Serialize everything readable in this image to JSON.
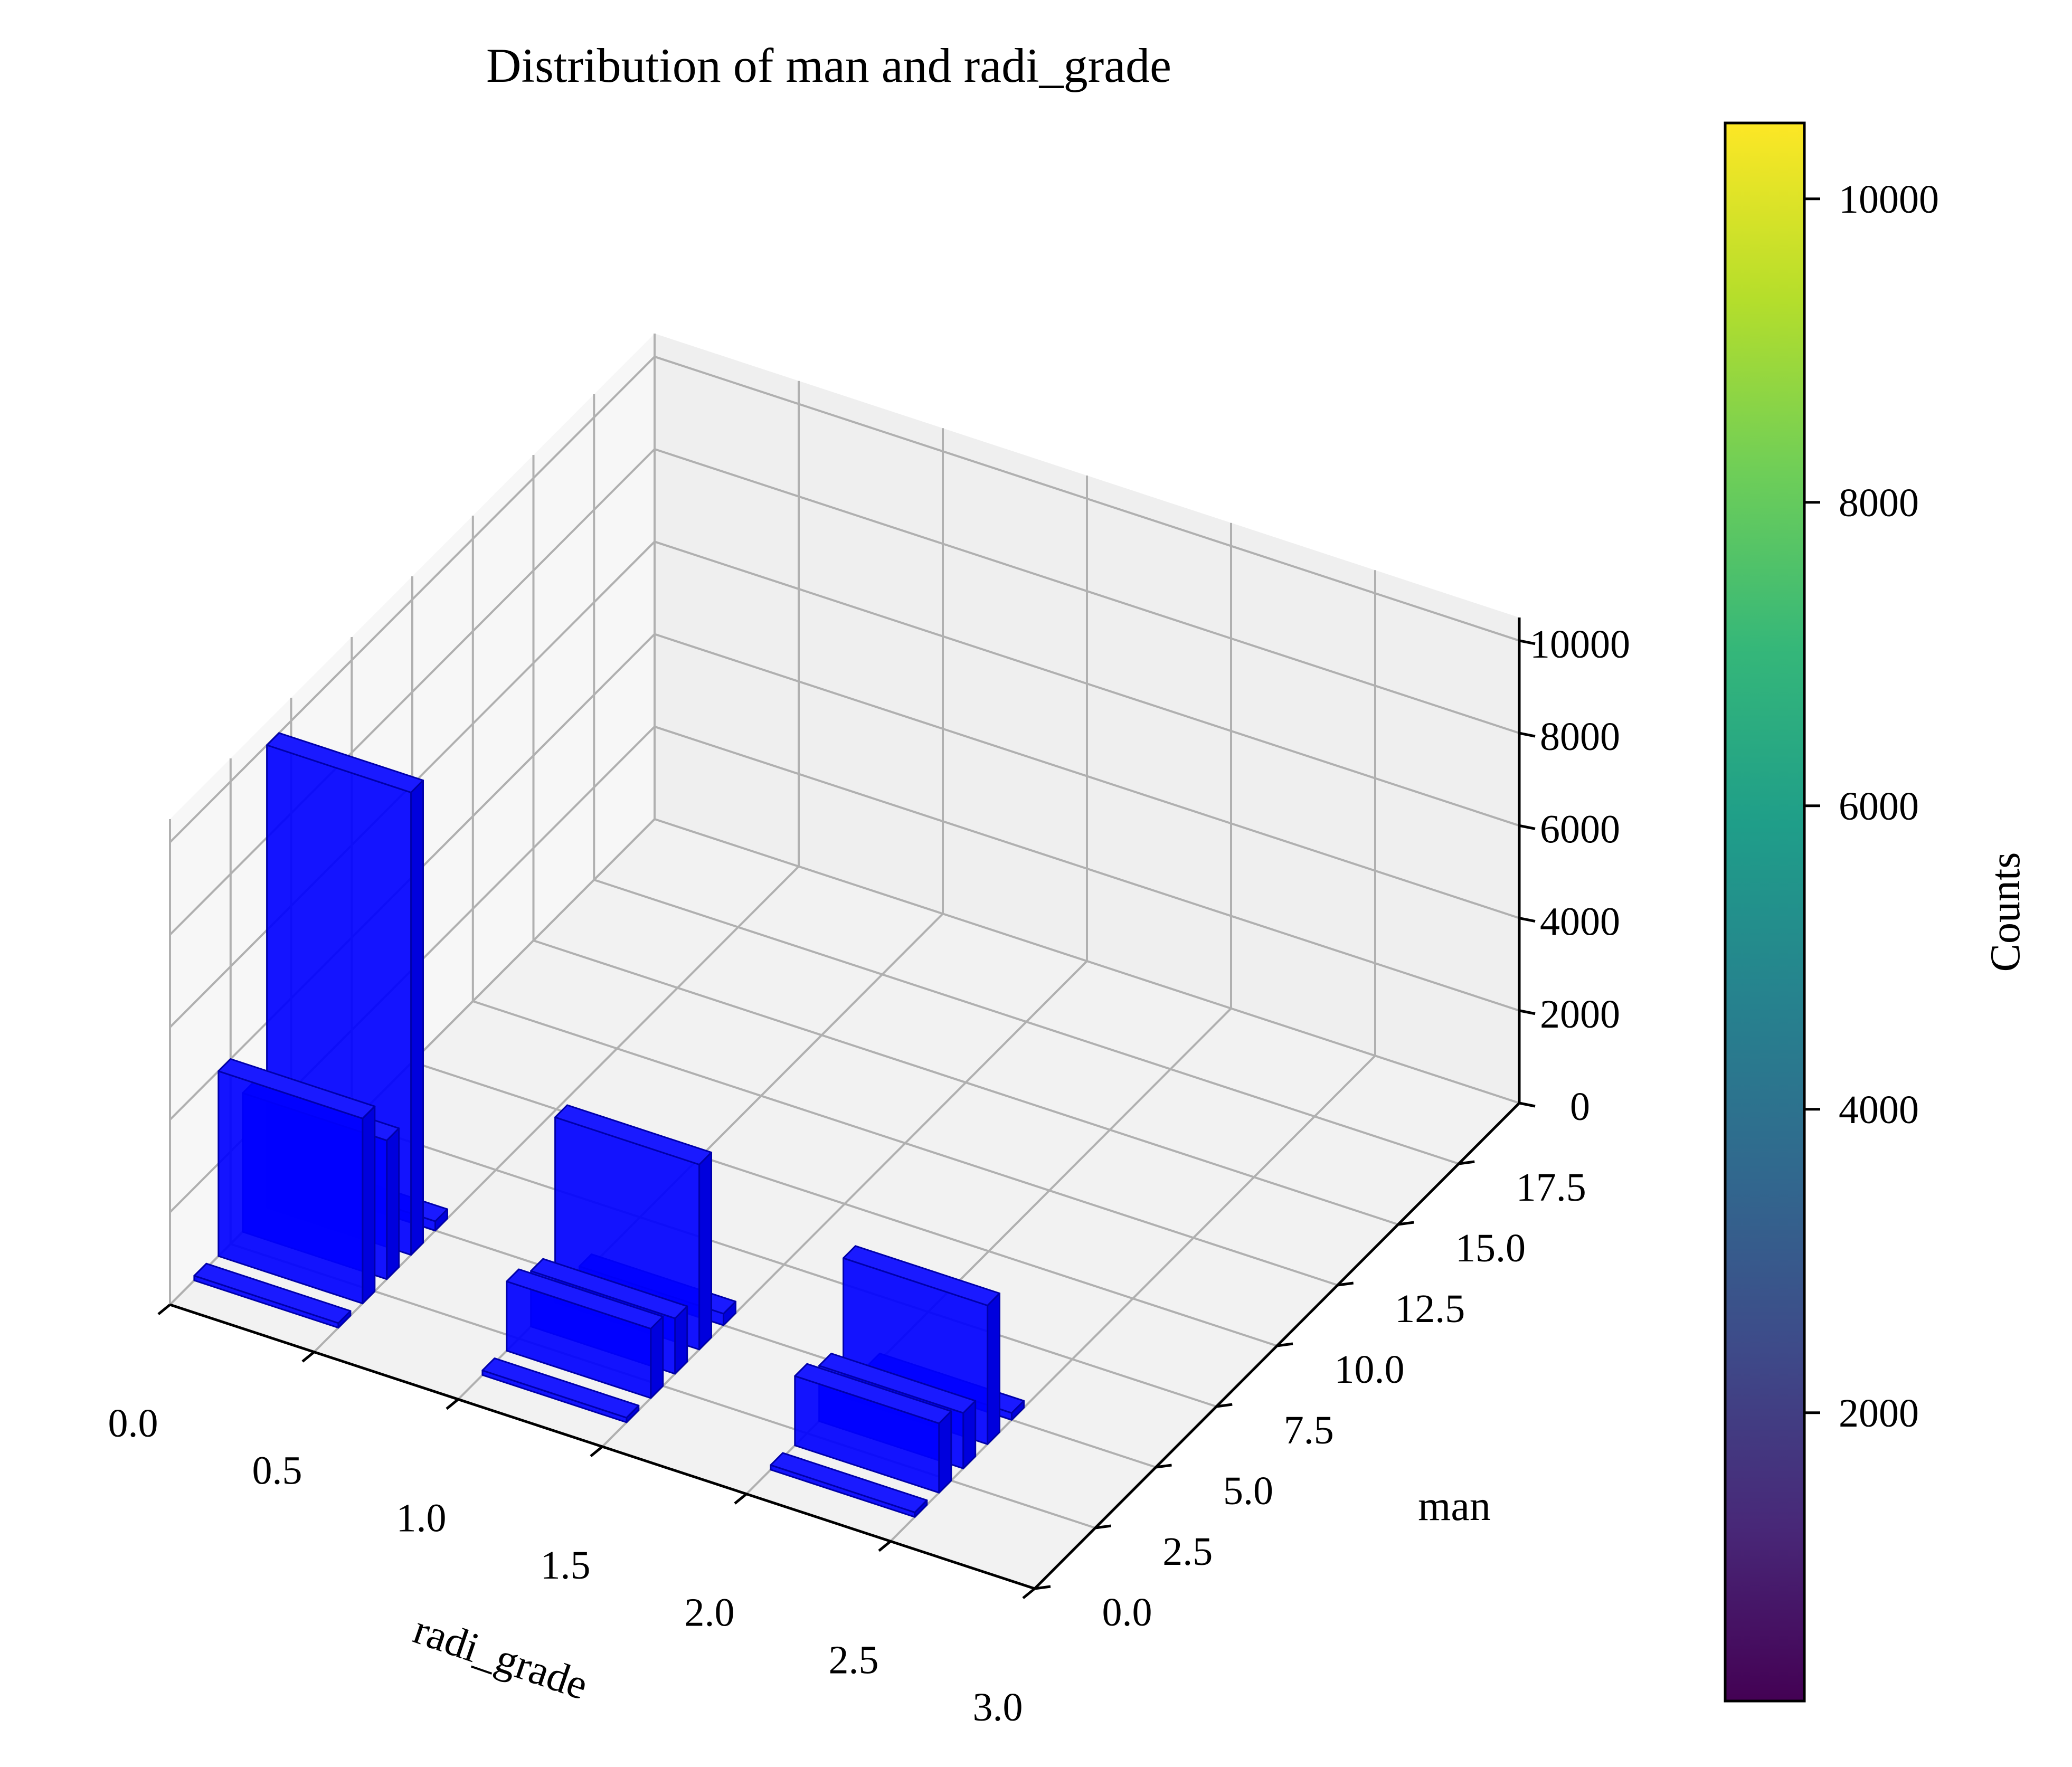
{
  "chart_data": {
    "type": "bar3d",
    "title": "Distribution of man and radi_grade",
    "xlabel": "radi_grade",
    "ylabel": "man",
    "zlabel": "",
    "xlim": [
      0.0,
      3.0
    ],
    "ylim": [
      0.0,
      20.0
    ],
    "zlim": [
      0,
      10500
    ],
    "xticks": [
      "0.0",
      "0.5",
      "1.0",
      "1.5",
      "2.0",
      "2.5",
      "3.0"
    ],
    "yticks": [
      "0.0",
      "2.5",
      "5.0",
      "7.5",
      "10.0",
      "12.5",
      "15.0",
      "17.5"
    ],
    "zticks": [
      "0",
      "2000",
      "4000",
      "6000",
      "8000",
      "10000"
    ],
    "bar_color": "#0000ff",
    "grid": true,
    "bars": [
      {
        "radi_grade": 0,
        "man": 1,
        "count": 100
      },
      {
        "radi_grade": 0,
        "man": 2,
        "count": 4000
      },
      {
        "radi_grade": 0,
        "man": 3,
        "count": 3000
      },
      {
        "radi_grade": 0,
        "man": 4,
        "count": 10000
      },
      {
        "radi_grade": 0,
        "man": 5,
        "count": 200
      },
      {
        "radi_grade": 1,
        "man": 1,
        "count": 100
      },
      {
        "radi_grade": 1,
        "man": 2,
        "count": 1500
      },
      {
        "radi_grade": 1,
        "man": 3,
        "count": 1200
      },
      {
        "radi_grade": 1,
        "man": 4,
        "count": 4000
      },
      {
        "radi_grade": 1,
        "man": 5,
        "count": 250
      },
      {
        "radi_grade": 2,
        "man": 1,
        "count": 100
      },
      {
        "radi_grade": 2,
        "man": 2,
        "count": 1500
      },
      {
        "radi_grade": 2,
        "man": 3,
        "count": 1200
      },
      {
        "radi_grade": 2,
        "man": 4,
        "count": 3000
      },
      {
        "radi_grade": 2,
        "man": 5,
        "count": 150
      }
    ]
  },
  "colorbar": {
    "label": "Counts",
    "min": 100,
    "max": 10500,
    "ticks": [
      "2000",
      "4000",
      "6000",
      "8000",
      "10000"
    ],
    "colormap": "viridis",
    "colors": [
      "#440154",
      "#482878",
      "#3e4a89",
      "#31688e",
      "#26828e",
      "#1f9e89",
      "#35b779",
      "#6ece58",
      "#b5de2b",
      "#fde725"
    ]
  }
}
